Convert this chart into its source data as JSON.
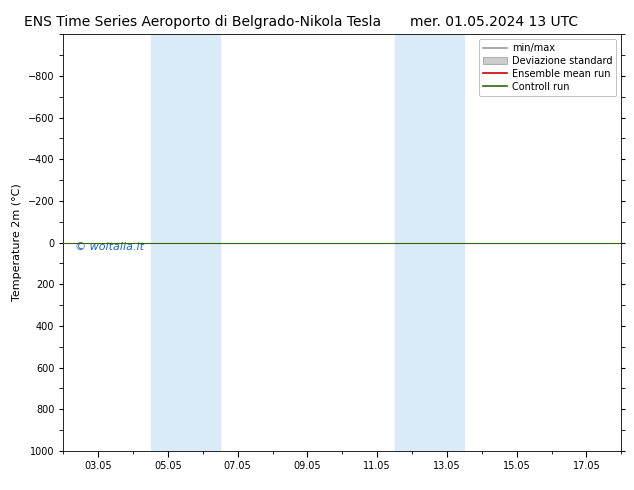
{
  "title_left": "ENS Time Series Aeroporto di Belgrado-Nikola Tesla",
  "title_right": "mer. 01.05.2024 13 UTC",
  "ylabel": "Temperature 2m (°C)",
  "watermark": "© woitalia.it",
  "watermark_color": "#1a6abf",
  "ylim_bottom": -1000,
  "ylim_top": 1000,
  "yticks": [
    -800,
    -600,
    -400,
    -200,
    0,
    200,
    400,
    600,
    800,
    1000
  ],
  "xlim_left": 1.0,
  "xlim_right": 17.0,
  "xtick_labels": [
    "03.05",
    "05.05",
    "07.05",
    "09.05",
    "11.05",
    "13.05",
    "15.05",
    "17.05"
  ],
  "xtick_positions": [
    2,
    4,
    6,
    8,
    10,
    12,
    14,
    16
  ],
  "shaded_bands": [
    {
      "x_start": 3.5,
      "x_end": 5.5
    },
    {
      "x_start": 10.5,
      "x_end": 12.5
    }
  ],
  "shaded_color": "#daeaf7",
  "horizontal_line_y": 0,
  "control_run_color": "#336600",
  "ensemble_mean_color": "#cc0000",
  "minmax_color": "#999999",
  "std_color": "#cccccc",
  "background_color": "#ffffff",
  "legend_labels": [
    "min/max",
    "Deviazione standard",
    "Ensemble mean run",
    "Controll run"
  ],
  "legend_line_colors": [
    "#999999",
    "#cccccc",
    "#cc0000",
    "#336600"
  ],
  "title_fontsize": 10,
  "ylabel_fontsize": 8,
  "tick_fontsize": 7,
  "legend_fontsize": 7,
  "watermark_fontsize": 8
}
